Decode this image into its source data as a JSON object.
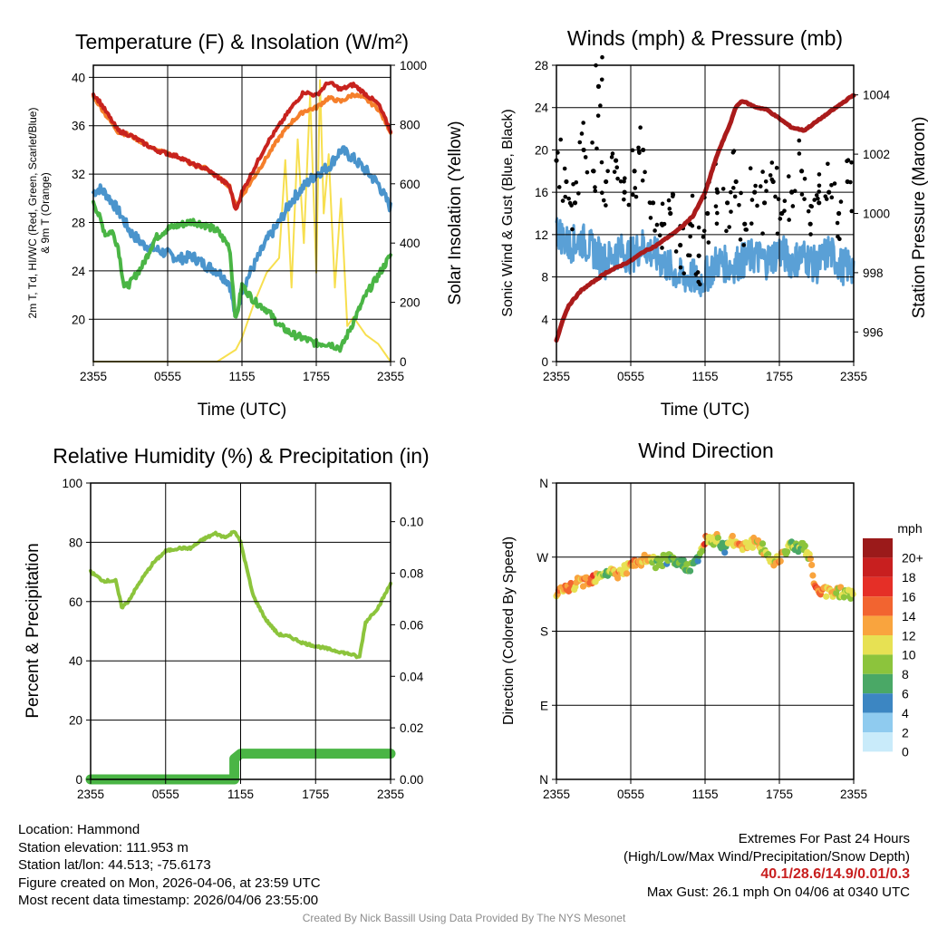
{
  "panels": {
    "temperature": {
      "title": "Temperature (F) & Insolation (W/m²)",
      "xlabel": "Time (UTC)",
      "ylabel_line1": "2m T, Td, HI/WC (Red, Green, Scarlet/Blue)",
      "ylabel_line2": "& 9m T (Orange)",
      "y2label": "Solar Insolation (Yellow)",
      "x_ticks": [
        "2355",
        "0555",
        "1155",
        "1755",
        "2355"
      ],
      "y_ticks": [
        "20",
        "24",
        "28",
        "32",
        "36",
        "40"
      ],
      "y2_ticks": [
        "0",
        "200",
        "400",
        "600",
        "800",
        "1000"
      ]
    },
    "winds": {
      "title": "Winds (mph) & Pressure (mb)",
      "xlabel": "Time (UTC)",
      "ylabel": "Sonic Wind & Gust (Blue, Black)",
      "y2label": "Station Pressure (Maroon)",
      "x_ticks": [
        "2355",
        "0555",
        "1155",
        "1755",
        "2355"
      ],
      "y_ticks": [
        "0",
        "4",
        "8",
        "12",
        "16",
        "20",
        "24",
        "28"
      ],
      "y2_ticks": [
        "996",
        "998",
        "1000",
        "1002",
        "1004"
      ]
    },
    "humidity": {
      "title": "Relative Humidity (%) & Precipitation (in)",
      "ylabel": "Percent & Precipitation",
      "x_ticks": [
        "2355",
        "0555",
        "1155",
        "1755",
        "2355"
      ],
      "y_ticks": [
        "0",
        "20",
        "40",
        "60",
        "80",
        "100"
      ],
      "y2_ticks": [
        "0.00",
        "0.02",
        "0.04",
        "0.06",
        "0.08",
        "0.10"
      ]
    },
    "direction": {
      "title": "Wind Direction",
      "ylabel": "Direction (Colored By Speed)",
      "x_ticks": [
        "2355",
        "0555",
        "1155",
        "1755",
        "2355"
      ],
      "y_ticks": [
        "N",
        "E",
        "S",
        "W",
        "N"
      ],
      "legend_title": "mph",
      "legend_labels": [
        "20+",
        "18",
        "16",
        "14",
        "12",
        "10",
        "8",
        "6",
        "4",
        "2",
        "0"
      ]
    }
  },
  "colors": {
    "temp": "#c8231e",
    "temp9m": "#f57f2b",
    "heat_index": "#f03a24",
    "dewpoint": "#4ab545",
    "windchill": "#4a94cc",
    "solar": "#f7df4f",
    "wind": "#5aa0d6",
    "gust": "#000000",
    "pressure": "#aa1b1b",
    "rh": "#8cc43c",
    "precip": "#4ab545",
    "speed_scale": [
      "#9b1a1a",
      "#c81f1f",
      "#e52f27",
      "#f26430",
      "#f9a43e",
      "#e7e153",
      "#8cc43c",
      "#4aa866",
      "#3c86c2",
      "#8fcbef",
      "#c9ebfa"
    ]
  },
  "chart_data": [
    {
      "type": "line",
      "title": "Temperature (F) & Insolation (W/m2)",
      "xlabel": "Time (UTC)",
      "ylabel": "2m T, Td, HI/WC (Red, Green, Scarlet/Blue) & 9m T (Orange)",
      "y2label": "Solar Insolation (Yellow)",
      "x_hours": [
        0,
        6,
        12,
        18,
        24
      ],
      "xlim": [
        0,
        24
      ],
      "ylim": [
        16.5,
        41
      ],
      "y2lim": [
        0,
        1000
      ],
      "series": [
        {
          "name": "2m T",
          "axis": "y",
          "x": [
            0,
            0.5,
            1,
            2,
            3,
            4,
            5,
            6,
            7,
            8,
            9,
            10,
            11,
            11.5,
            12,
            13,
            14,
            15,
            16,
            17,
            18,
            19,
            20,
            21,
            22,
            23,
            24
          ],
          "values": [
            38.6,
            38.0,
            37.2,
            35.6,
            35.2,
            34.6,
            34.0,
            33.7,
            33.4,
            32.8,
            32.5,
            31.8,
            31.0,
            29.0,
            30.5,
            32.5,
            34.5,
            36.0,
            37.5,
            38.8,
            38.5,
            39.6,
            39.0,
            39.4,
            38.6,
            37.8,
            35.6
          ]
        },
        {
          "name": "9m T",
          "axis": "y",
          "x": [
            0,
            0.5,
            1,
            2,
            3,
            4,
            5,
            6,
            7,
            8,
            9,
            10,
            11,
            11.5,
            12,
            13,
            14,
            15,
            16,
            17,
            18,
            19,
            20,
            21,
            22,
            23,
            24
          ],
          "values": [
            38.4,
            37.7,
            36.9,
            35.5,
            35.2,
            34.6,
            34.0,
            33.7,
            33.4,
            32.8,
            32.5,
            31.8,
            31.0,
            29.3,
            30.2,
            31.8,
            33.4,
            35.0,
            36.3,
            37.2,
            37.5,
            38.3,
            38.0,
            38.6,
            38.2,
            37.4,
            35.5
          ]
        },
        {
          "name": "Dewpoint",
          "axis": "y",
          "x": [
            0,
            1,
            1.5,
            2,
            2.5,
            3,
            4,
            5,
            6,
            7,
            8,
            9,
            10,
            11,
            11.5,
            12,
            13,
            14,
            15,
            16,
            17,
            18,
            19,
            20,
            21,
            22,
            23,
            24
          ],
          "values": [
            29.8,
            27.0,
            27.3,
            26.0,
            22.6,
            23.0,
            24.5,
            26.7,
            27.5,
            27.8,
            28.1,
            27.8,
            27.3,
            26.0,
            19.8,
            22.8,
            21.5,
            20.8,
            19.5,
            18.8,
            18.4,
            18.0,
            18.0,
            17.6,
            19.8,
            22.0,
            23.6,
            25.3
          ]
        },
        {
          "name": "Heat Index / Wind Chill",
          "axis": "y",
          "x": [
            0,
            0.5,
            1,
            2,
            3,
            4,
            5,
            6,
            7,
            8,
            9,
            10,
            11,
            11.5,
            12,
            13,
            14,
            15,
            16,
            17,
            18,
            19,
            20,
            21,
            22,
            23,
            24
          ],
          "values": [
            30.5,
            30.8,
            30.4,
            29.0,
            27.2,
            26.2,
            25.8,
            25.4,
            25.0,
            25.2,
            24.5,
            24.0,
            23.0,
            20.0,
            22.5,
            24.5,
            26.5,
            28.0,
            29.8,
            31.0,
            32.0,
            32.6,
            34.0,
            33.3,
            32.3,
            31.2,
            29.2
          ]
        },
        {
          "name": "Solar Insolation",
          "axis": "y2",
          "x": [
            0,
            5,
            10,
            11.5,
            12,
            13,
            14,
            15,
            15.5,
            16,
            16.5,
            17,
            17.5,
            18,
            18.3,
            18.6,
            19,
            19.5,
            20,
            20.5,
            21,
            22,
            23,
            24
          ],
          "values": [
            0,
            0,
            0,
            40,
            80,
            200,
            300,
            350,
            680,
            250,
            750,
            400,
            900,
            300,
            950,
            500,
            700,
            250,
            550,
            120,
            150,
            90,
            60,
            0
          ]
        }
      ]
    },
    {
      "type": "line",
      "title": "Winds (mph) & Pressure (mb)",
      "xlabel": "Time (UTC)",
      "ylabel": "Sonic Wind & Gust (Blue, Black)",
      "y2label": "Station Pressure (Maroon)",
      "xlim": [
        0,
        24
      ],
      "ylim": [
        0,
        28
      ],
      "y2lim": [
        995,
        1005
      ],
      "series": [
        {
          "name": "Sonic Wind",
          "axis": "y",
          "x": [
            0,
            1,
            2,
            3,
            4,
            5,
            6,
            7,
            8,
            9,
            10,
            11,
            11.5,
            12,
            13,
            14,
            15,
            16,
            17,
            18,
            19,
            20,
            21,
            22,
            23,
            24
          ],
          "values": [
            12.5,
            11.0,
            11.5,
            10.5,
            9.5,
            10.5,
            10.0,
            11.0,
            10.0,
            9.0,
            8.0,
            8.0,
            7.5,
            8.0,
            9.5,
            9.0,
            9.5,
            10.0,
            9.5,
            10.5,
            9.5,
            10.0,
            9.0,
            10.5,
            9.0,
            9.0
          ]
        },
        {
          "name": "Gust",
          "axis": "y",
          "x": [
            0,
            0.8,
            1.5,
            2.2,
            3.0,
            3.4,
            4.0,
            4.8,
            5.5,
            6.3,
            7.0,
            7.8,
            8.5,
            9.2,
            10.0,
            10.8,
            11.5,
            12.2,
            13.0,
            13.8,
            14.5,
            15.2,
            16.0,
            16.8,
            17.5,
            18.2,
            19.0,
            19.8,
            20.5,
            21.2,
            22.0,
            22.8,
            23.5
          ],
          "values": [
            19,
            17,
            15,
            20,
            18,
            26,
            17,
            19,
            16,
            18,
            20,
            15,
            13,
            14,
            11,
            13,
            10,
            14,
            16,
            15,
            17,
            13,
            16,
            15,
            17,
            14,
            16,
            18,
            13,
            15,
            16,
            14,
            17
          ]
        },
        {
          "name": "Station Pressure",
          "axis": "y2",
          "x": [
            0,
            0.5,
            1,
            2,
            3,
            4,
            5,
            6,
            7,
            8,
            9,
            10,
            11,
            12,
            13,
            14,
            14.5,
            15,
            16,
            17,
            18,
            19,
            20,
            21,
            22,
            23,
            24
          ],
          "values": [
            995.7,
            996.4,
            996.9,
            997.4,
            997.7,
            998.0,
            998.2,
            998.4,
            998.7,
            998.9,
            999.2,
            999.5,
            999.9,
            1000.7,
            1002.0,
            1003.0,
            1003.6,
            1003.8,
            1003.6,
            1003.5,
            1003.2,
            1002.9,
            1002.8,
            1003.1,
            1003.4,
            1003.7,
            1004.0
          ]
        }
      ]
    },
    {
      "type": "line",
      "title": "Relative Humidity (%) & Precipitation (in)",
      "ylabel": "Percent & Precipitation",
      "xlim": [
        0,
        24
      ],
      "ylim": [
        0,
        100
      ],
      "y2lim": [
        0,
        0.115
      ],
      "series": [
        {
          "name": "Relative Humidity",
          "axis": "y",
          "x": [
            0,
            1,
            2,
            2.5,
            3,
            4,
            5,
            6,
            7,
            8,
            9,
            10,
            10.5,
            11,
            11.5,
            12,
            13,
            14,
            15,
            16,
            17,
            18,
            19,
            20,
            21,
            21.5,
            22,
            23,
            24
          ],
          "values": [
            70,
            67,
            67,
            58,
            60,
            67,
            73,
            77,
            78,
            78,
            81,
            83,
            82,
            82,
            84,
            80,
            62,
            54,
            49,
            48,
            46,
            45,
            44,
            43,
            42,
            41,
            53,
            58,
            66
          ]
        },
        {
          "name": "Precipitation",
          "axis": "y2",
          "x": [
            0,
            11.5,
            11.5,
            12,
            24
          ],
          "values": [
            0.0,
            0.0,
            0.008,
            0.01,
            0.01
          ]
        }
      ]
    },
    {
      "type": "scatter",
      "title": "Wind Direction",
      "ylabel": "Direction (Colored By Speed)",
      "xlim": [
        0,
        24
      ],
      "y_categories": [
        "N",
        "E",
        "S",
        "W",
        "N"
      ],
      "series": [
        {
          "name": "Wind Direction (deg)",
          "x": [
            0,
            1,
            2,
            3,
            3.5,
            4,
            5,
            5.5,
            6,
            7,
            7.5,
            8,
            9,
            9.5,
            10,
            11,
            11.5,
            12,
            12.5,
            13,
            13.5,
            14,
            15,
            16,
            17,
            17.5,
            18,
            18.5,
            19,
            20,
            20.5,
            21,
            22,
            23,
            24
          ],
          "values": [
            225,
            232,
            240,
            245,
            250,
            252,
            250,
            255,
            258,
            265,
            270,
            262,
            268,
            262,
            262,
            258,
            270,
            290,
            288,
            295,
            280,
            290,
            285,
            288,
            275,
            262,
            270,
            280,
            285,
            282,
            265,
            228,
            228,
            228,
            225
          ],
          "speeds": [
            12,
            13,
            12,
            14,
            9,
            8,
            12,
            10,
            13,
            11,
            12,
            8,
            6,
            7,
            7,
            8,
            5,
            14,
            9,
            11,
            4,
            10,
            12,
            11,
            10,
            9,
            12,
            10,
            8,
            7,
            10,
            14,
            12,
            10,
            8
          ]
        }
      ]
    }
  ],
  "footer": {
    "location": "Location: Hammond",
    "elevation": "Station elevation: 111.953 m",
    "latlon": "Station lat/lon: 44.513; -75.6173",
    "created": "Figure created on Mon, 2026-04-06, at 23:59 UTC",
    "recent": "Most recent data timestamp: 2026/04/06 23:55:00",
    "extremes_title": "Extremes For Past 24 Hours",
    "extremes_fields": "(High/Low/Max Wind/Precipitation/Snow Depth)",
    "extremes_values": "40.1/28.6/14.9/0.01/0.3",
    "max_gust": "Max Gust: 26.1 mph On 04/06 at 0340 UTC",
    "credit": "Created By Nick Bassill Using Data Provided By The NYS Mesonet"
  }
}
